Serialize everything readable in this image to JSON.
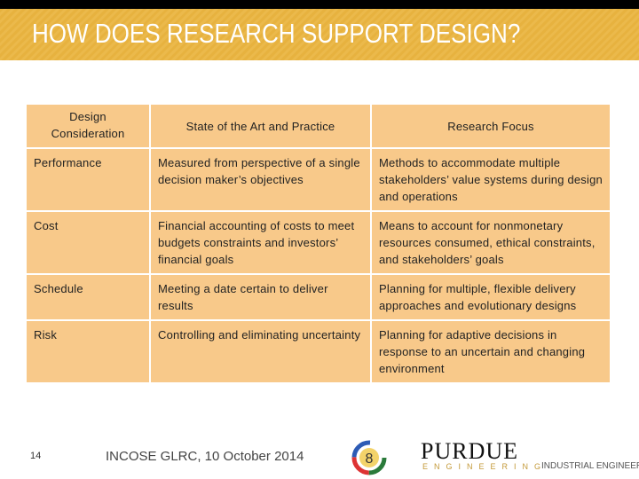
{
  "header": {
    "title": "HOW DOES RESEARCH SUPPORT DESIGN?"
  },
  "table": {
    "columns": [
      "Design Consideration",
      "State of the Art and Practice",
      "Research Focus"
    ],
    "rows": [
      [
        "Performance",
        "Measured from perspective of a single decision maker’s objectives",
        "Methods to accommodate multiple stakeholders’ value systems during design and operations"
      ],
      [
        "Cost",
        "Financial accounting of costs to meet budgets constraints and investors’ financial goals",
        "Means to account for nonmonetary resources consumed, ethical constraints, and stakeholders’ goals"
      ],
      [
        "Schedule",
        "Meeting a date certain to deliver results",
        "Planning for multiple, flexible delivery approaches and evolutionary designs"
      ],
      [
        "Risk",
        "Controlling and eliminating uncertainty",
        "Planning for adaptive decisions in response to an uncertain and changing environment"
      ]
    ]
  },
  "footer": {
    "page_number": "14",
    "event": "INCOSE GLRC, 10 October 2014",
    "logo_name": "PURDUE",
    "logo_subtitle": "ENGINEERING",
    "department": "INDUSTRIAL ENGINEERING"
  }
}
